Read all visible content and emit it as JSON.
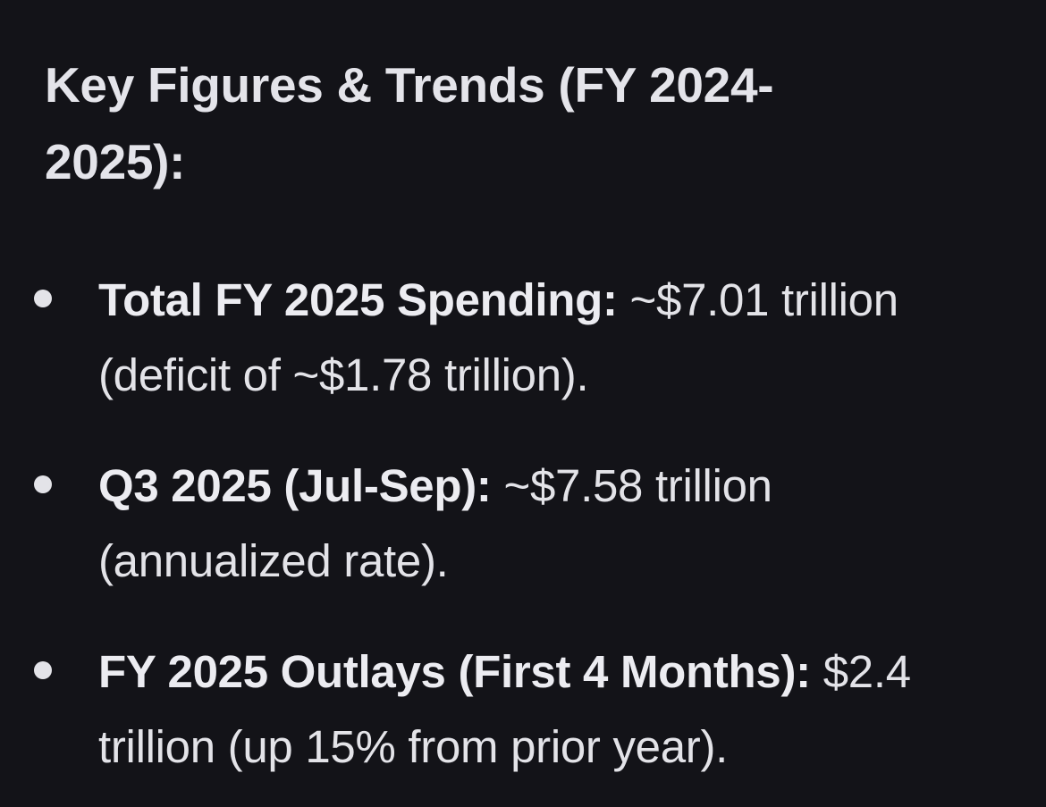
{
  "heading": "Key Figures & Trends (FY 2024-2025):",
  "items": [
    {
      "label": "Total FY 2025 Spending:",
      "text": " ~$7.01 trillion (deficit of ~$1.78 trillion)."
    },
    {
      "label": "Q3 2025 (Jul-Sep):",
      "text": " ~$7.58 trillion (annualized rate)."
    },
    {
      "label": "FY 2025 Outlays (First 4 Months):",
      "text": " $2.4 trillion (up 15% from prior year)."
    }
  ]
}
